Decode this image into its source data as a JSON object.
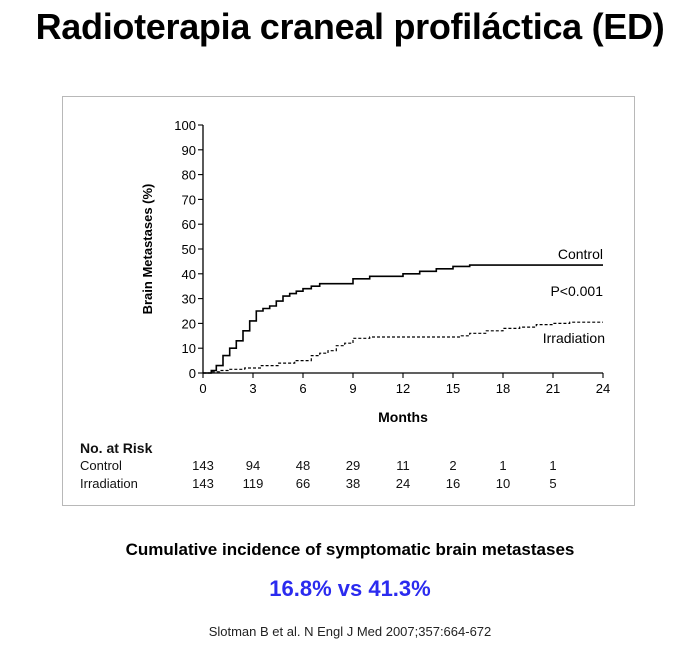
{
  "slide": {
    "title": "Radioterapia craneal profiláctica (ED)",
    "caption": "Cumulative incidence of symptomatic brain metastases",
    "highlight": "16.8% vs 41.3%",
    "reference": "Slotman B et al. N Engl J Med 2007;357:664-672"
  },
  "chart_data": {
    "type": "line",
    "title": "",
    "xlabel": "Months",
    "ylabel": "Brain Metastases (%)",
    "xlim": [
      0,
      24
    ],
    "ylim": [
      0,
      100
    ],
    "x_ticks": [
      0,
      3,
      6,
      9,
      12,
      15,
      18,
      21,
      24
    ],
    "y_ticks": [
      0,
      10,
      20,
      30,
      40,
      50,
      60,
      70,
      80,
      90,
      100
    ],
    "grid": false,
    "annotation": "P<0.001",
    "series": [
      {
        "name": "Control",
        "style": "solid",
        "color": "#000000",
        "x": [
          0,
          0.5,
          0.8,
          1.2,
          1.6,
          2.0,
          2.4,
          2.8,
          3.2,
          3.6,
          4.0,
          4.4,
          4.8,
          5.2,
          5.6,
          6.0,
          6.5,
          7.0,
          8.0,
          9.0,
          10.0,
          11.0,
          12.0,
          13.0,
          14.0,
          15.0,
          16.0,
          18.0,
          21.0,
          24.0
        ],
        "y": [
          0,
          1,
          3,
          7,
          10,
          13,
          17,
          21,
          25,
          26,
          27,
          29,
          31,
          32,
          33,
          34,
          35,
          36,
          36,
          38,
          39,
          39,
          40,
          41,
          42,
          43,
          43.5,
          43.5,
          43.5,
          43.5
        ]
      },
      {
        "name": "Irradiation",
        "style": "dashed",
        "color": "#000000",
        "x": [
          0,
          0.5,
          1.0,
          1.5,
          2.5,
          3.5,
          4.5,
          5.5,
          6.5,
          7.0,
          7.5,
          8.0,
          8.5,
          9.0,
          10.0,
          11.0,
          12.0,
          13.0,
          14.0,
          15.0,
          15.5,
          16.0,
          17.0,
          18.0,
          19.0,
          20.0,
          21.0,
          22.0,
          24.0
        ],
        "y": [
          0,
          0.5,
          1,
          1.5,
          2,
          3,
          4,
          5,
          7,
          8,
          9,
          11,
          12,
          14,
          14.5,
          14.5,
          14.5,
          14.5,
          14.5,
          14.5,
          15,
          16,
          17,
          18,
          18.5,
          19.5,
          20,
          20.5,
          20.5
        ]
      }
    ],
    "at_risk": {
      "heading": "No. at Risk",
      "times": [
        0,
        3,
        6,
        9,
        12,
        15,
        18,
        21
      ],
      "rows": [
        {
          "label": "Control",
          "values": [
            "143",
            "94",
            "48",
            "29",
            "11",
            "2",
            "1",
            "1"
          ]
        },
        {
          "label": "Irradiation",
          "values": [
            "143",
            "119",
            "66",
            "38",
            "24",
            "16",
            "10",
            "5"
          ]
        }
      ]
    }
  }
}
